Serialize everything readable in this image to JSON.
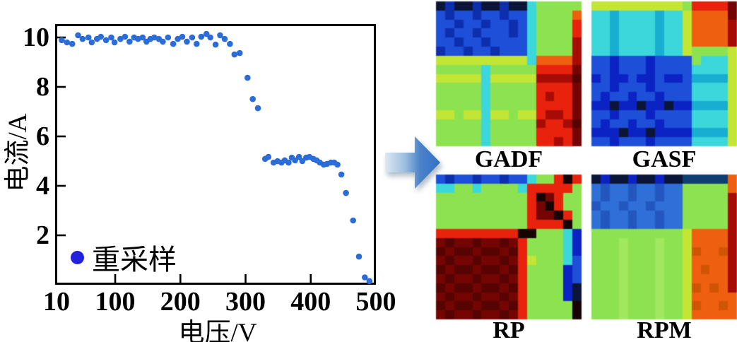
{
  "chart_data": [
    {
      "type": "scatter",
      "title": "",
      "xlabel": "电压/V",
      "ylabel": "电流/A",
      "legend": [
        {
          "label": "重采样",
          "color": "#2222dd"
        }
      ],
      "legend_position": "lower-left",
      "xlim": [
        10,
        500
      ],
      "ylim": [
        0,
        10.5
      ],
      "x_ticks": [
        10,
        100,
        200,
        300,
        400,
        500
      ],
      "y_ticks": [
        2,
        4,
        6,
        8,
        10
      ],
      "grid": false,
      "marker_color": "#2b6cd9",
      "points": [
        [
          18,
          9.89
        ],
        [
          26,
          9.8
        ],
        [
          34,
          9.74
        ],
        [
          43,
          10.09
        ],
        [
          50,
          9.94
        ],
        [
          59,
          10.0
        ],
        [
          64,
          9.8
        ],
        [
          72,
          9.94
        ],
        [
          78,
          10.03
        ],
        [
          86,
          9.89
        ],
        [
          94,
          10.0
        ],
        [
          99,
          9.8
        ],
        [
          108,
          9.94
        ],
        [
          115,
          10.03
        ],
        [
          122,
          9.83
        ],
        [
          129,
          10.0
        ],
        [
          135,
          9.94
        ],
        [
          142,
          10.0
        ],
        [
          148,
          9.83
        ],
        [
          154,
          9.94
        ],
        [
          160,
          10.0
        ],
        [
          167,
          9.94
        ],
        [
          173,
          9.83
        ],
        [
          181,
          10.0
        ],
        [
          189,
          9.74
        ],
        [
          196,
          9.94
        ],
        [
          203,
          10.03
        ],
        [
          210,
          9.83
        ],
        [
          218,
          10.0
        ],
        [
          225,
          9.74
        ],
        [
          232,
          10.03
        ],
        [
          240,
          10.14
        ],
        [
          246,
          10.0
        ],
        [
          254,
          9.71
        ],
        [
          261,
          10.09
        ],
        [
          268,
          9.94
        ],
        [
          276,
          9.74
        ],
        [
          283,
          9.31
        ],
        [
          291,
          9.37
        ],
        [
          303,
          8.37
        ],
        [
          311,
          7.51
        ],
        [
          319,
          7.14
        ],
        [
          330,
          5.09
        ],
        [
          335,
          5.17
        ],
        [
          343,
          4.94
        ],
        [
          349,
          5.0
        ],
        [
          355,
          4.94
        ],
        [
          360,
          5.03
        ],
        [
          366,
          4.94
        ],
        [
          371,
          5.14
        ],
        [
          376,
          5.03
        ],
        [
          382,
          5.17
        ],
        [
          387,
          5.0
        ],
        [
          393,
          5.14
        ],
        [
          398,
          5.17
        ],
        [
          404,
          5.09
        ],
        [
          409,
          5.03
        ],
        [
          414,
          4.94
        ],
        [
          420,
          4.86
        ],
        [
          425,
          4.89
        ],
        [
          431,
          4.94
        ],
        [
          436,
          4.94
        ],
        [
          441,
          4.86
        ],
        [
          447,
          4.46
        ],
        [
          454,
          3.71
        ],
        [
          465,
          2.6
        ],
        [
          474,
          1.14
        ],
        [
          483,
          0.3
        ],
        [
          490,
          0.15
        ]
      ]
    },
    {
      "type": "heatmap",
      "title": "GADF",
      "grid": [
        "knkknkknkkcggggg",
        "BnBBnBBnBBcggggo",
        "BBnBBnBBnBcggggr",
        "BnBBnBBBnBcggggr",
        "BBnBBnBBBBcggggR",
        "nBBnBBnBBBcggggR",
        "yyyyyyyyyycooooR",
        "gggggcgggggrrrrm",
        "yyyyycyyyyyRRRRM",
        "gggggcgggggrrrrm",
        "gggggcgggggrRrrm",
        "gggggcgggggrrrrm",
        "yygyycyygyyrRRrm",
        "gggggcgggggRrrRM",
        "gggggcgggggrrrrm",
        "gggggcgggggrrRrm"
      ]
    },
    {
      "type": "heatmap",
      "title": "GASF",
      "grid": [
        "yyyyyyyyyygrrrrm",
        "ccdccccdccyoooom",
        "ccdccccdccyooooR",
        "ccdccccdccyooooR",
        "ccdccccdccyooooR",
        "ccdccccdccyggggy",
        "BBbBBBbBBBBgcccy",
        "BBbBBBbBBBBccccy",
        "bBbbBbbBbbBddddy",
        "BBbBBBbBBBBccccy",
        "BbBBbBBbBBBccccy",
        "bbkbbkbbkbbddddy",
        "BBbBBBbBBBBccccy",
        "BbBBbBBbBBBccccy",
        "bbbkbbkbbbbddddy",
        "BBbBBBbBBBBccccy"
      ]
    },
    {
      "type": "heatmap",
      "title": "RP",
      "grid": [
        "BnBBnBBnBBcggrKr",
        "ccggcggggcrrrrrg",
        "ggggggggggrKmrgg",
        "ggggggggggrmKrgg",
        "ggggggggggrmmKrg",
        "ggggggggggrrrrKg",
        "rrrrrrrrrKKgggcb",
        "mMmmMmmMmrggggcb",
        "MmMMmMMmMrggggcb",
        "mMmmMmmMmrygggcB",
        "MmMMmMMmMrggggbB",
        "mMmmMmmMmrggggbB",
        "MmMMmMMmMrggggbk",
        "mMmmMmmMmrggggbk",
        "MmMMmMMmMrgggggK",
        "mMmmMmmMmrgggggK"
      ]
    },
    {
      "type": "heatmap",
      "title": "RPM",
      "grid": [
        "kbkkbkkbkkttttto",
        "PpPPpPPpPPgggggo",
        "PpPPpPPpPPgggggR",
        "pPPpPPpPPPgggggR",
        "PpPPpPPpPPgggggR",
        "PpPPpPPpPPgggggR",
        "ggggggggggyooooR",
        "gggGgggGggyooooR",
        "gggGgggGggyOooOR",
        "gggGgggGggyooooR",
        "gggGgggGggyoOooR",
        "gggGgggGggyooooR",
        "gggGgggGggyOoOoR",
        "gggGgggGggyooooo",
        "gggGgggGggyOooOo",
        "gggGgggGggyooooo"
      ]
    }
  ],
  "palette": {
    "B": "#1e4fd9",
    "n": "#0d2fae",
    "k": "#0a1538",
    "b": "#0c23c4",
    "c": "#3bd7da",
    "d": "#17aed2",
    "t": "#0f3f72",
    "g": "#8ce24f",
    "G": "#9fe860",
    "y": "#c3e534",
    "o": "#ee5f10",
    "O": "#cf5505",
    "r": "#e8220d",
    "R": "#a60b05",
    "m": "#740503",
    "M": "#560302",
    "K": "#160404",
    "P": "#2f6fd8",
    "p": "#2257bf"
  },
  "arrow": {
    "direction": "right",
    "color_start": "#dde9f4",
    "color_end": "#2e6fc4"
  }
}
